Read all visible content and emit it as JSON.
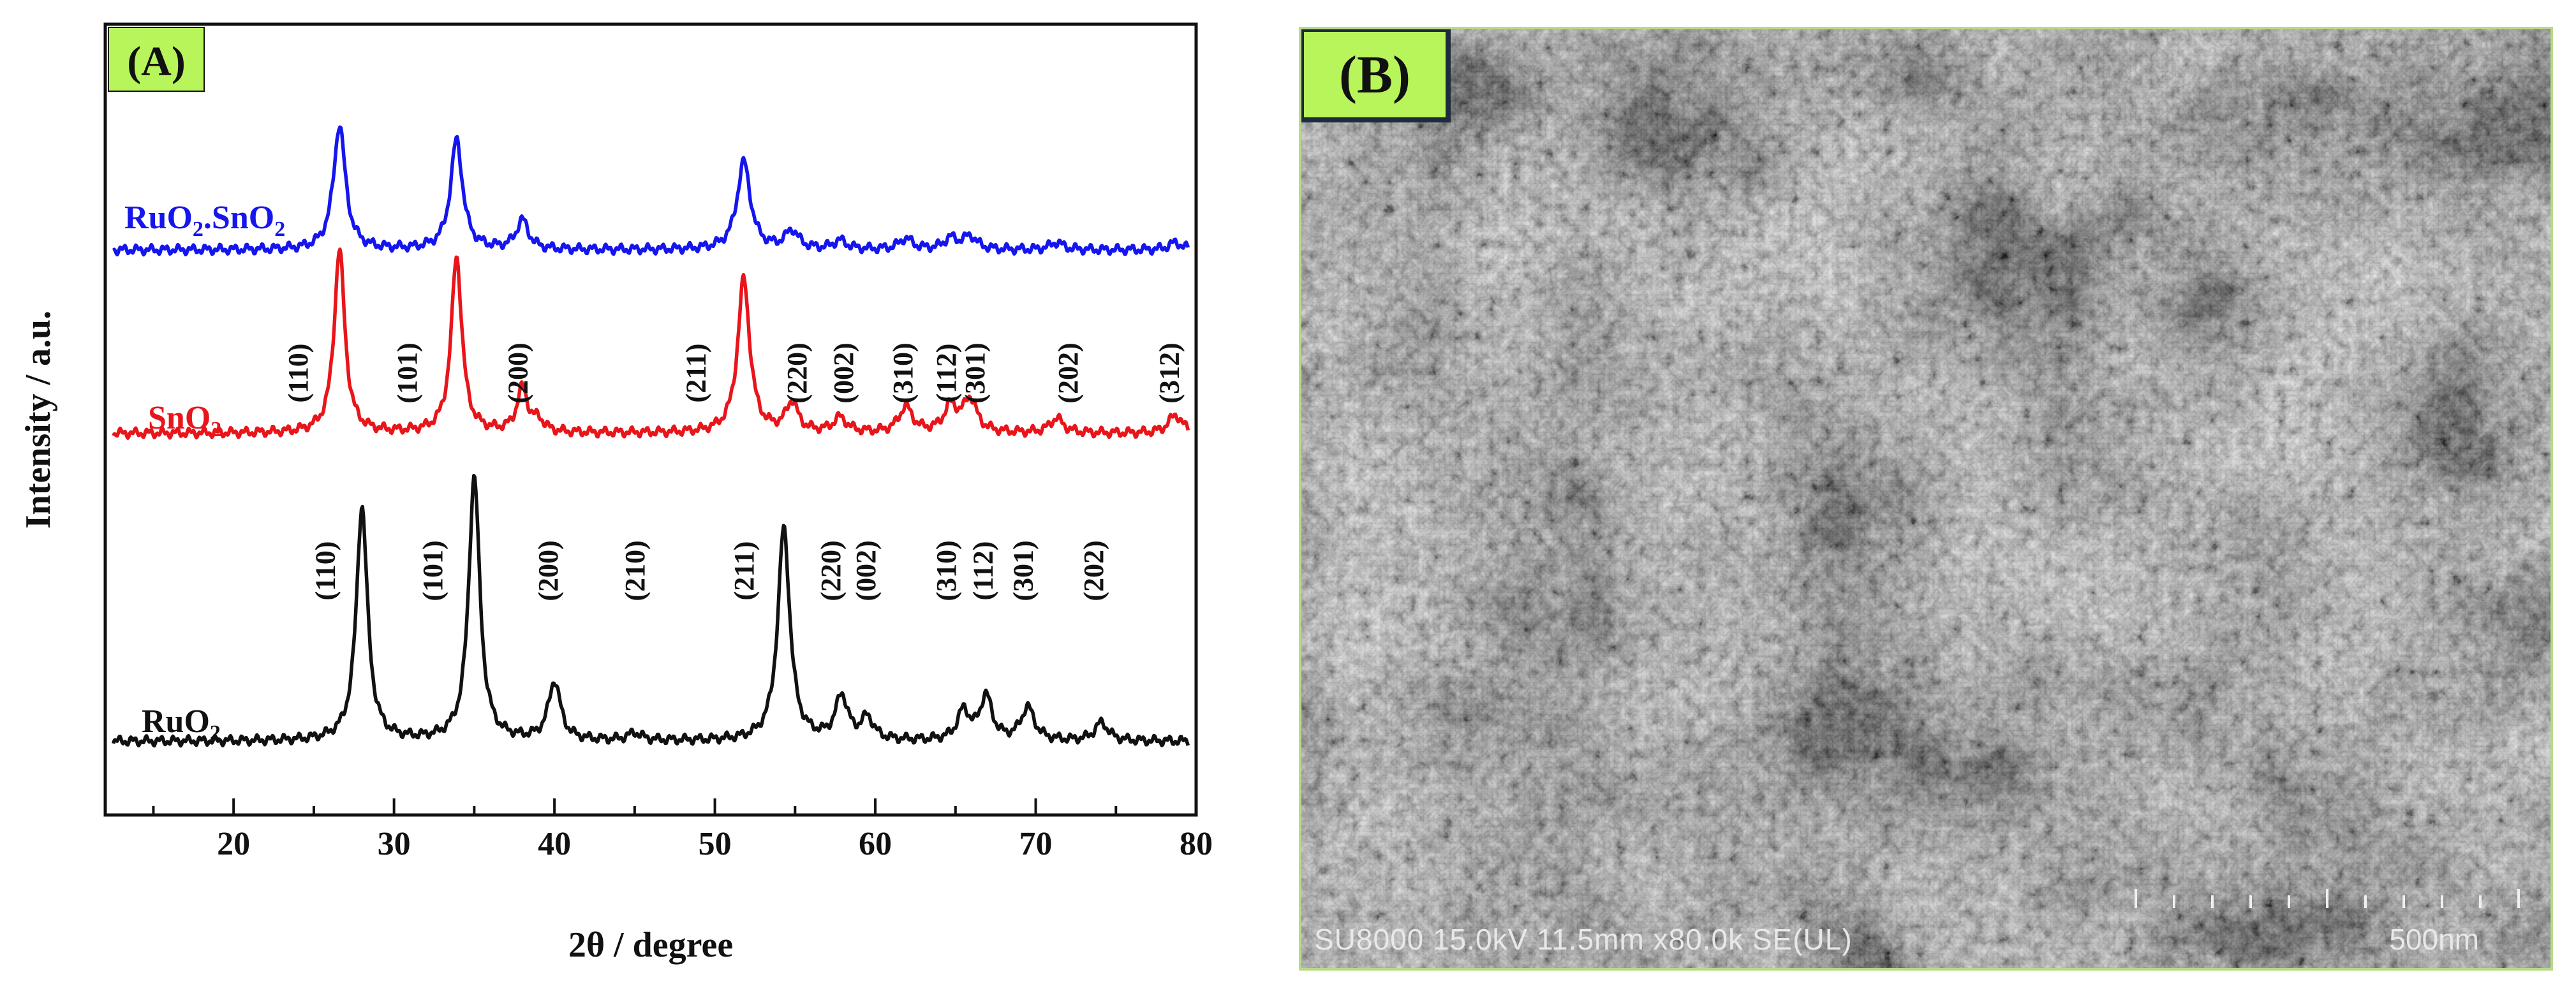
{
  "chart_data": {
    "type": "line",
    "panel_label": "(A)",
    "xlabel": "2θ / degree",
    "ylabel": "Intensity / a.u.",
    "xlim": [
      12,
      80
    ],
    "xticks": [
      20,
      30,
      40,
      50,
      60,
      70,
      80
    ],
    "yticks_shown": false,
    "series": [
      {
        "name": "RuO2.SnO2",
        "label_main": "RuO",
        "label_sub1": "2",
        "label_mid": ".SnO",
        "label_sub2": "2",
        "color": "#1515ee",
        "baseline": 0.74,
        "peaks": [
          [
            26.6,
            0.17,
            0.45
          ],
          [
            33.9,
            0.15,
            0.45
          ],
          [
            38.0,
            0.04,
            0.45
          ],
          [
            51.8,
            0.12,
            0.5
          ],
          [
            54.8,
            0.025,
            0.5
          ],
          [
            57.8,
            0.012,
            0.5
          ],
          [
            61.9,
            0.015,
            0.5
          ],
          [
            64.7,
            0.015,
            0.5
          ],
          [
            65.9,
            0.018,
            0.5
          ],
          [
            71.3,
            0.01,
            0.5
          ],
          [
            78.7,
            0.01,
            0.5
          ]
        ],
        "annotations": []
      },
      {
        "name": "SnO2",
        "label_main": "SnO",
        "label_sub1": "2",
        "label_mid": "",
        "label_sub2": "",
        "color": "#e8151b",
        "baseline": 0.49,
        "peaks": [
          [
            26.6,
            0.25,
            0.4
          ],
          [
            33.9,
            0.24,
            0.4
          ],
          [
            38.0,
            0.06,
            0.4
          ],
          [
            39.0,
            0.015,
            0.4
          ],
          [
            51.8,
            0.21,
            0.45
          ],
          [
            54.8,
            0.04,
            0.45
          ],
          [
            57.8,
            0.02,
            0.5
          ],
          [
            61.9,
            0.035,
            0.5
          ],
          [
            64.7,
            0.035,
            0.5
          ],
          [
            65.9,
            0.045,
            0.5
          ],
          [
            71.3,
            0.02,
            0.5
          ],
          [
            78.7,
            0.025,
            0.5
          ]
        ],
        "annotations": [
          {
            "x": 24.2,
            "text": "(110)"
          },
          {
            "x": 31.0,
            "text": "(101)"
          },
          {
            "x": 37.9,
            "text": "(200)"
          },
          {
            "x": 49.0,
            "text": "(211)"
          },
          {
            "x": 55.3,
            "text": "(220)"
          },
          {
            "x": 58.2,
            "text": "(002)"
          },
          {
            "x": 61.9,
            "text": "(310)"
          },
          {
            "x": 64.6,
            "text": "(112)"
          },
          {
            "x": 66.4,
            "text": "(301)"
          },
          {
            "x": 72.2,
            "text": "(202)"
          },
          {
            "x": 78.5,
            "text": "(312)"
          }
        ]
      },
      {
        "name": "RuO2",
        "label_main": "RuO",
        "label_sub1": "2",
        "label_mid": "",
        "label_sub2": "",
        "color": "#111111",
        "baseline": 0.07,
        "peaks": [
          [
            28.0,
            0.32,
            0.42
          ],
          [
            35.0,
            0.36,
            0.42
          ],
          [
            40.0,
            0.08,
            0.45
          ],
          [
            45.0,
            0.01,
            0.5
          ],
          [
            54.3,
            0.29,
            0.45
          ],
          [
            57.9,
            0.06,
            0.45
          ],
          [
            59.5,
            0.03,
            0.45
          ],
          [
            65.5,
            0.04,
            0.45
          ],
          [
            66.9,
            0.06,
            0.45
          ],
          [
            69.5,
            0.045,
            0.5
          ],
          [
            74.1,
            0.025,
            0.5
          ]
        ],
        "annotations": [
          {
            "x": 25.9,
            "text": "(110)"
          },
          {
            "x": 32.6,
            "text": "(101)"
          },
          {
            "x": 39.8,
            "text": "(200)"
          },
          {
            "x": 45.2,
            "text": "(210)"
          },
          {
            "x": 52.0,
            "text": "(211)"
          },
          {
            "x": 57.4,
            "text": "(220)"
          },
          {
            "x": 59.6,
            "text": "(002)"
          },
          {
            "x": 64.6,
            "text": "(310)"
          },
          {
            "x": 66.9,
            "text": "(112)"
          },
          {
            "x": 69.4,
            "text": "(301)"
          },
          {
            "x": 73.8,
            "text": "(202)"
          }
        ]
      }
    ]
  },
  "sem_image": {
    "panel_label": "(B)",
    "info_text": "SU8000 15.0kV 11.5mm x80.0k SE(UL)",
    "scale_label": "500nm",
    "background_color": "#6b6b6b",
    "frame_color": "#b9d98a",
    "label_bg_color": "#b8f55a"
  }
}
